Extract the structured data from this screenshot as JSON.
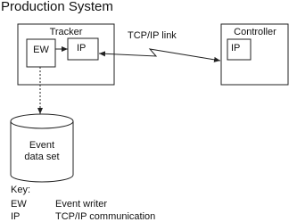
{
  "title": "Production System",
  "nodes": [
    {
      "label": "Tracker"
    },
    {
      "label": "EW"
    },
    {
      "label": "IP"
    },
    {
      "label": "Controller"
    },
    {
      "label": "IP"
    },
    {
      "label_lines": [
        "Event",
        "data set"
      ]
    }
  ],
  "edges": [
    {
      "label": "TCP/IP link"
    }
  ],
  "key": {
    "title": "Key:",
    "rows": [
      [
        "EW",
        "Event writer"
      ],
      [
        "IP",
        "TCP/IP communication"
      ]
    ]
  }
}
